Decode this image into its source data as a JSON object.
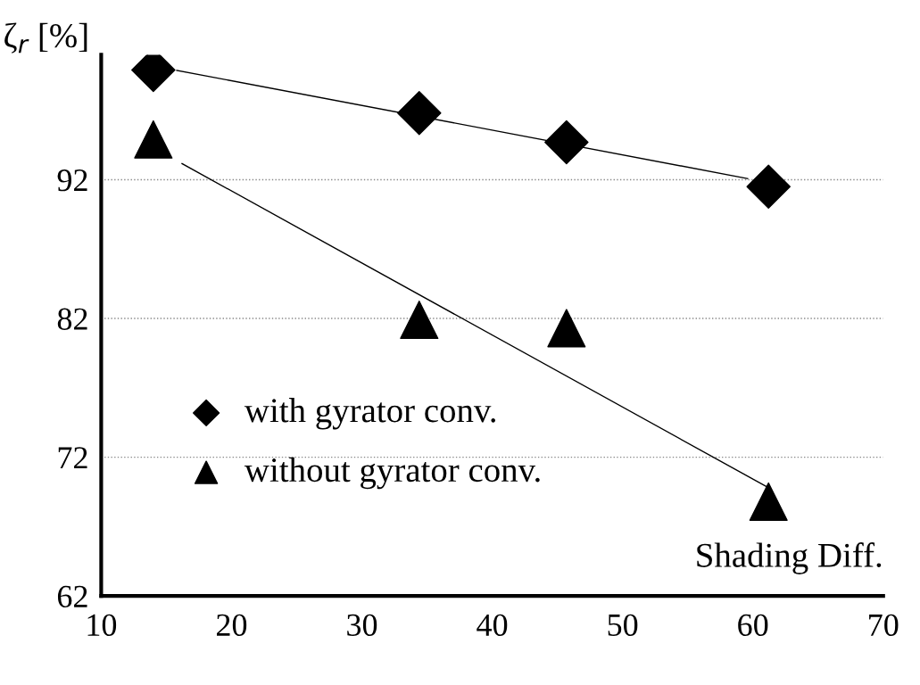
{
  "chart_data": {
    "type": "scatter",
    "xlabel": "Shading Diff.",
    "ylabel": "ζ$_{r}$ [%]",
    "xlim": [
      10,
      70
    ],
    "ylim": [
      62,
      101
    ],
    "xticks": [
      10,
      20,
      30,
      40,
      50,
      60,
      70
    ],
    "yticks": [
      62,
      72,
      82,
      92
    ],
    "grid": "y",
    "legend": "bottom left",
    "series": [
      {
        "name": "with gyrator conv.",
        "color": "#000000",
        "marker": "diamond",
        "x": [
          14,
          34.4,
          45.7,
          61.2
        ],
        "values": [
          99.9,
          96.8,
          94.7,
          91.5
        ]
      },
      {
        "name": "without gyrator conv.",
        "color": "#000000",
        "marker": "triangle",
        "x": [
          14,
          34.4,
          45.7,
          61.2
        ],
        "values": [
          94.9,
          81.9,
          81.3,
          68.8
        ]
      },
      {
        "type": "line",
        "color": "#000000",
        "x": [
          15.8,
          59.6
        ],
        "values": [
          99.88,
          92.08
        ]
      },
      {
        "type": "line",
        "color": "#000000",
        "x": [
          16.2,
          61.2
        ],
        "values": [
          93.16,
          69.8
        ]
      }
    ]
  }
}
